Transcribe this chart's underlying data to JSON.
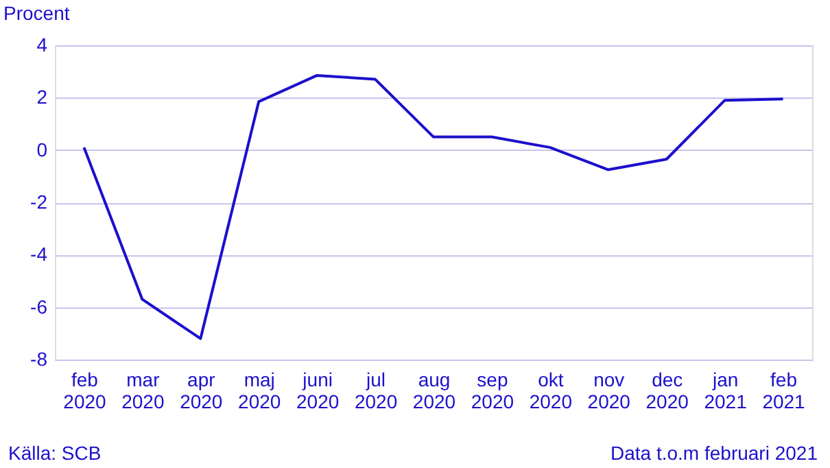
{
  "chart_data": {
    "type": "line",
    "ylabel": "Procent",
    "categories": [
      "feb 2020",
      "mar 2020",
      "apr 2020",
      "maj 2020",
      "juni 2020",
      "jul 2020",
      "aug 2020",
      "sep 2020",
      "okt 2020",
      "nov 2020",
      "dec 2020",
      "jan 2021",
      "feb 2021"
    ],
    "series": [
      {
        "color": "#1c0fcc",
        "values": [
          0.1,
          -5.7,
          -7.2,
          1.85,
          2.85,
          2.7,
          0.5,
          0.5,
          0.1,
          -0.75,
          -0.35,
          1.9,
          1.95
        ]
      }
    ],
    "ylim": [
      -8,
      4
    ],
    "yticks": [
      -8,
      -6,
      -4,
      -2,
      0,
      2,
      4
    ],
    "grid": "y",
    "marker": "none",
    "line_style": "solid",
    "annotations": [
      "Källa: SCB",
      "Data t.o.m februari 2021"
    ]
  }
}
